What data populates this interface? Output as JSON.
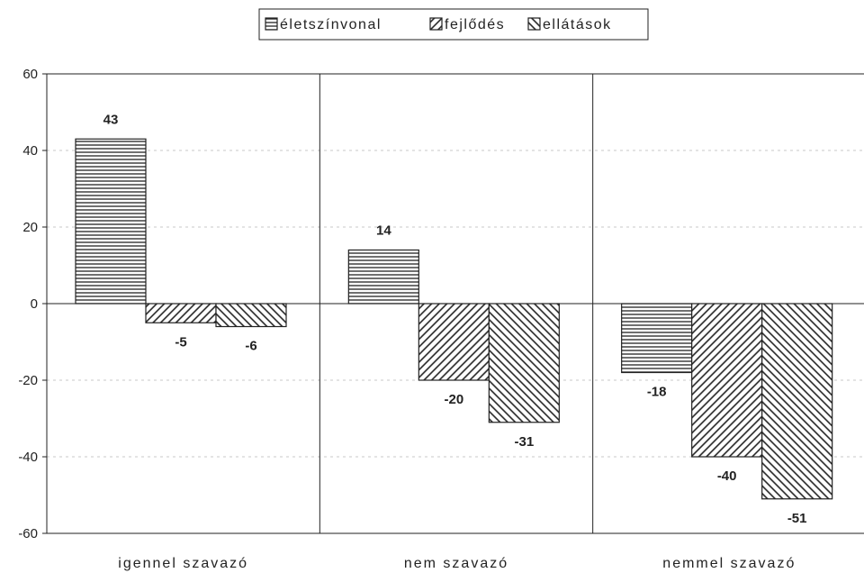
{
  "chart_data": {
    "type": "bar",
    "categories": [
      "igennel szavazó",
      "nem szavazó",
      "nemmel szavazó"
    ],
    "series": [
      {
        "name": "életszínvonal",
        "values": [
          43,
          14,
          -18
        ]
      },
      {
        "name": "fejlődés",
        "values": [
          -5,
          -20,
          -40
        ]
      },
      {
        "name": "ellátások",
        "values": [
          -6,
          -31,
          -51
        ]
      }
    ],
    "yticks": [
      "60",
      "40",
      "20",
      "0",
      "-20",
      "-40",
      "-60"
    ],
    "ylim": [
      -60,
      60
    ],
    "grid": true,
    "legend_position": "top-center"
  },
  "patterns": {
    "életszínvonal": "horizontal-lines",
    "fejlődés": "forward-diagonal",
    "ellátások": "backward-diagonal"
  },
  "colors": {
    "ink": "#222222",
    "grid": "#c8c8c8",
    "background": "#ffffff"
  }
}
